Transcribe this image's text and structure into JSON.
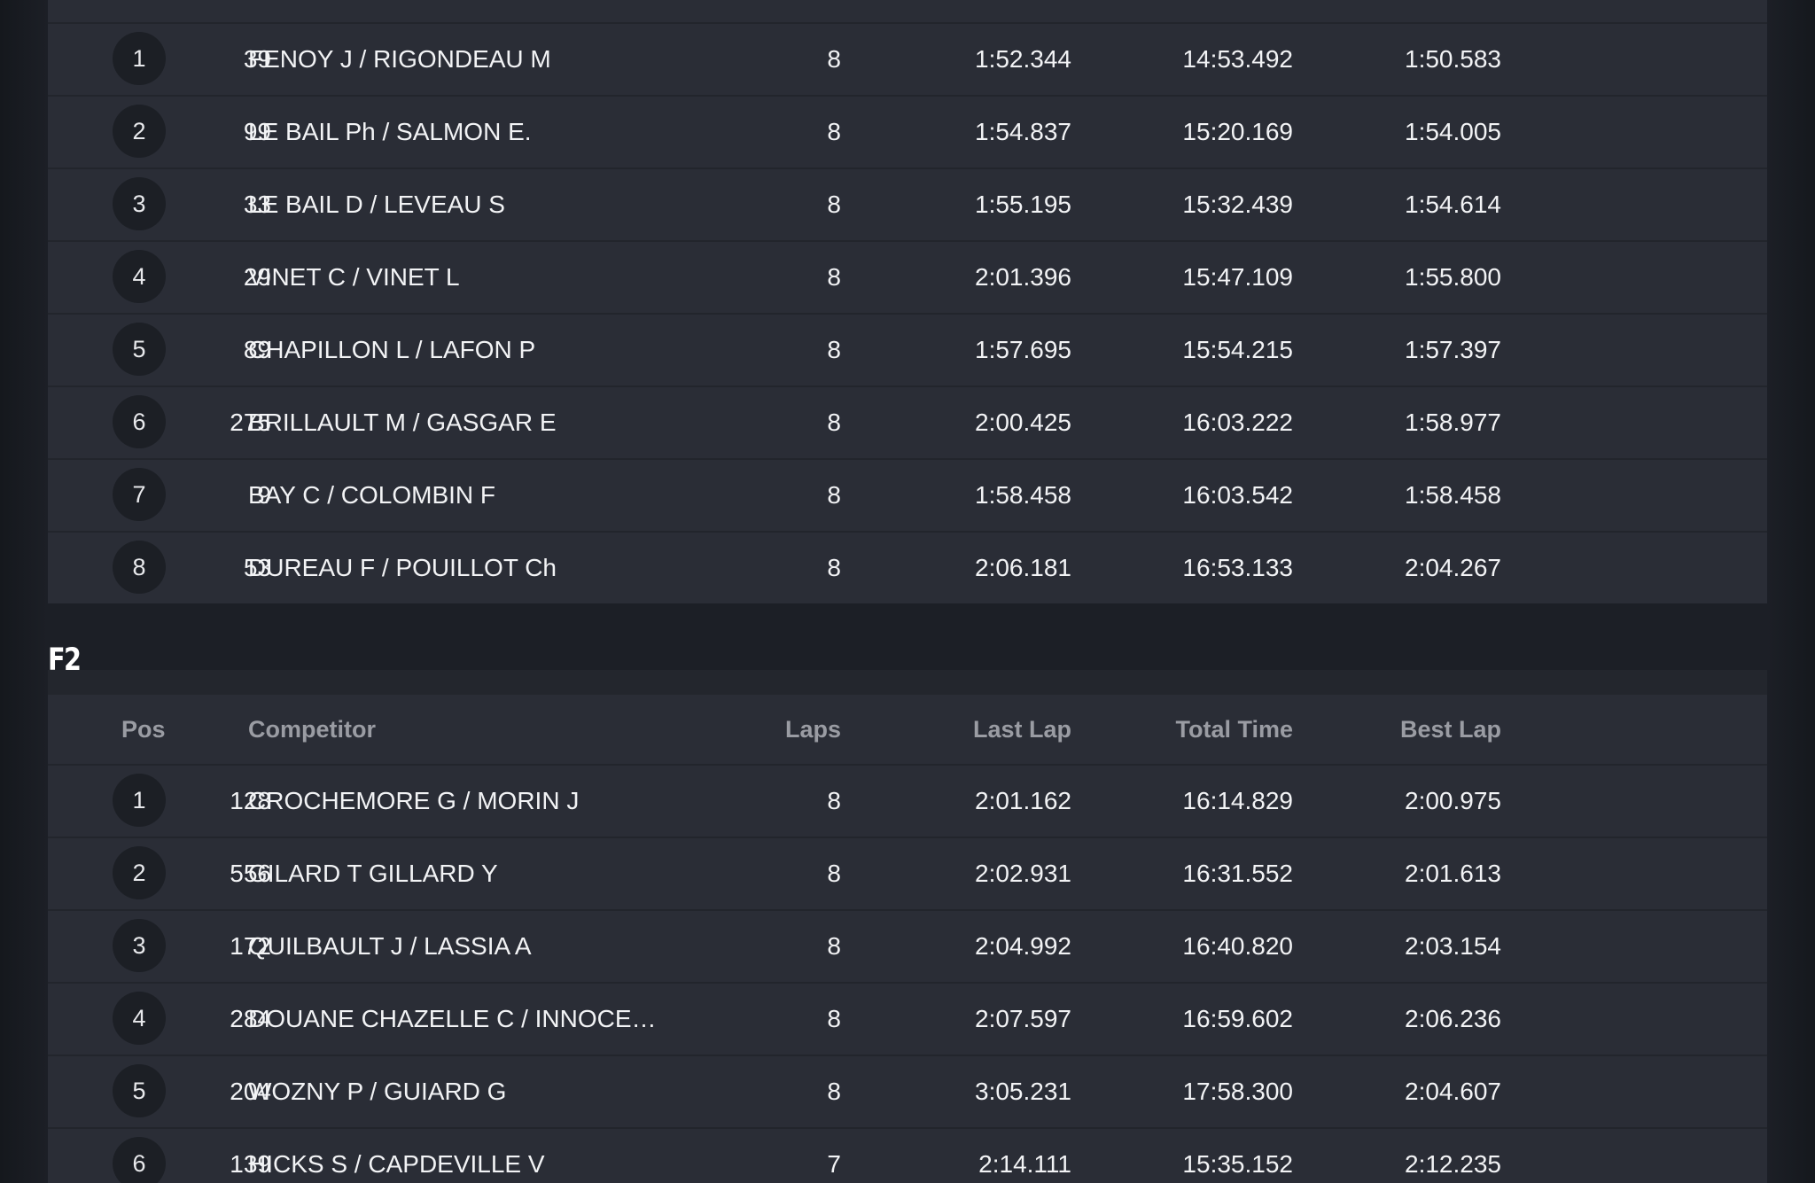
{
  "top_table": {
    "rows": [
      {
        "pos": "1",
        "number": "39",
        "competitor": "FENOY J / RIGONDEAU M",
        "laps": "8",
        "last_lap": "1:52.344",
        "total_time": "14:53.492",
        "best_lap": "1:50.583"
      },
      {
        "pos": "2",
        "number": "99",
        "competitor": "LE BAIL Ph / SALMON E.",
        "laps": "8",
        "last_lap": "1:54.837",
        "total_time": "15:20.169",
        "best_lap": "1:54.005"
      },
      {
        "pos": "3",
        "number": "33",
        "competitor": "LE BAIL D / LEVEAU S",
        "laps": "8",
        "last_lap": "1:55.195",
        "total_time": "15:32.439",
        "best_lap": "1:54.614"
      },
      {
        "pos": "4",
        "number": "29",
        "competitor": "VINET C / VINET L",
        "laps": "8",
        "last_lap": "2:01.396",
        "total_time": "15:47.109",
        "best_lap": "1:55.800"
      },
      {
        "pos": "5",
        "number": "89",
        "competitor": "CHAPILLON L / LAFON P",
        "laps": "8",
        "last_lap": "1:57.695",
        "total_time": "15:54.215",
        "best_lap": "1:57.397"
      },
      {
        "pos": "6",
        "number": "275",
        "competitor": "BRILLAULT M / GASGAR E",
        "laps": "8",
        "last_lap": "2:00.425",
        "total_time": "16:03.222",
        "best_lap": "1:58.977"
      },
      {
        "pos": "7",
        "number": "9",
        "competitor": "BAY C / COLOMBIN F",
        "laps": "8",
        "last_lap": "1:58.458",
        "total_time": "16:03.542",
        "best_lap": "1:58.458"
      },
      {
        "pos": "8",
        "number": "53",
        "competitor": "DUREAU F / POUILLOT Ch",
        "laps": "8",
        "last_lap": "2:06.181",
        "total_time": "16:53.133",
        "best_lap": "2:04.267"
      }
    ]
  },
  "f2": {
    "title": "F2",
    "headers": {
      "pos": "Pos",
      "competitor": "Competitor",
      "laps": "Laps",
      "last_lap": "Last Lap",
      "total_time": "Total Time",
      "best_lap": "Best Lap"
    },
    "rows": [
      {
        "pos": "1",
        "number": "128",
        "competitor": "CROCHEMORE G / MORIN J",
        "laps": "8",
        "last_lap": "2:01.162",
        "total_time": "16:14.829",
        "best_lap": "2:00.975"
      },
      {
        "pos": "2",
        "number": "556",
        "competitor": "GILARD T GILLARD Y",
        "laps": "8",
        "last_lap": "2:02.931",
        "total_time": "16:31.552",
        "best_lap": "2:01.613"
      },
      {
        "pos": "3",
        "number": "172",
        "competitor": "QUILBAULT J / LASSIA A",
        "laps": "8",
        "last_lap": "2:04.992",
        "total_time": "16:40.820",
        "best_lap": "2:03.154"
      },
      {
        "pos": "4",
        "number": "284",
        "competitor": "DOUANE CHAZELLE C / INNOCE…",
        "laps": "8",
        "last_lap": "2:07.597",
        "total_time": "16:59.602",
        "best_lap": "2:06.236"
      },
      {
        "pos": "5",
        "number": "204",
        "competitor": "WOZNY P / GUIARD G",
        "laps": "8",
        "last_lap": "3:05.231",
        "total_time": "17:58.300",
        "best_lap": "2:04.607"
      },
      {
        "pos": "6",
        "number": "139",
        "competitor": "HICKS S / CAPDEVILLE V",
        "laps": "7",
        "last_lap": "2:14.111",
        "total_time": "15:35.152",
        "best_lap": "2:12.235"
      }
    ]
  },
  "colors": {
    "background": "#1c1f26",
    "panel": "#2a2d36",
    "badge": "#1c1f25",
    "header_text": "#9a9ca3",
    "row_text": "#f2f3f5"
  }
}
